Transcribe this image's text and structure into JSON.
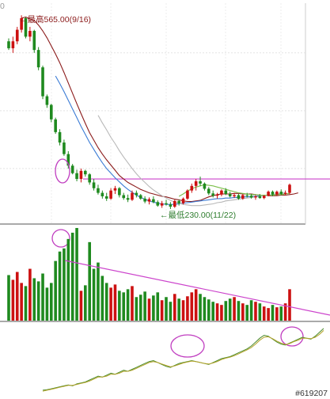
{
  "chart_data": {
    "type": "candlestick",
    "price_panel": {
      "max_label": "←最高565.00(9/16)",
      "min_label": "←最低230.00(11/22)",
      "max_value": 565.0,
      "min_value": 230.0,
      "corner_tick": "0",
      "candles": [
        [
          520,
          525,
          505,
          508
        ],
        [
          508,
          528,
          500,
          520
        ],
        [
          520,
          545,
          515,
          540
        ],
        [
          540,
          565,
          535,
          560
        ],
        [
          560,
          562,
          525,
          528
        ],
        [
          528,
          545,
          520,
          538
        ],
        [
          538,
          540,
          500,
          505
        ],
        [
          505,
          510,
          470,
          475
        ],
        [
          475,
          478,
          420,
          425
        ],
        [
          425,
          428,
          405,
          410
        ],
        [
          410,
          412,
          380,
          385
        ],
        [
          385,
          388,
          360,
          363
        ],
        [
          363,
          368,
          340,
          345
        ],
        [
          345,
          350,
          322,
          325
        ],
        [
          325,
          330,
          300,
          305
        ],
        [
          305,
          308,
          290,
          292
        ],
        [
          292,
          298,
          278,
          282
        ],
        [
          282,
          300,
          276,
          296
        ],
        [
          296,
          298,
          286,
          290
        ],
        [
          290,
          292,
          272,
          276
        ],
        [
          276,
          282,
          262,
          266
        ],
        [
          266,
          272,
          255,
          258
        ],
        [
          258,
          262,
          248,
          252
        ],
        [
          252,
          258,
          244,
          248
        ],
        [
          248,
          266,
          246,
          262
        ],
        [
          262,
          270,
          256,
          266
        ],
        [
          266,
          268,
          250,
          254
        ],
        [
          254,
          258,
          246,
          249
        ],
        [
          249,
          255,
          242,
          246
        ],
        [
          246,
          262,
          244,
          258
        ],
        [
          258,
          262,
          250,
          254
        ],
        [
          254,
          256,
          246,
          248
        ],
        [
          248,
          252,
          240,
          243
        ],
        [
          243,
          250,
          238,
          247
        ],
        [
          247,
          252,
          240,
          242
        ],
        [
          242,
          245,
          234,
          236
        ],
        [
          236,
          244,
          232,
          240
        ],
        [
          240,
          246,
          236,
          238
        ],
        [
          238,
          242,
          230,
          234
        ],
        [
          234,
          246,
          232,
          244
        ],
        [
          244,
          246,
          236,
          240
        ],
        [
          240,
          250,
          238,
          248
        ],
        [
          248,
          264,
          246,
          262
        ],
        [
          262,
          274,
          258,
          270
        ],
        [
          270,
          282,
          262,
          278
        ],
        [
          278,
          286,
          270,
          274
        ],
        [
          274,
          276,
          262,
          265
        ],
        [
          265,
          268,
          254,
          257
        ],
        [
          257,
          262,
          250,
          253
        ],
        [
          253,
          258,
          248,
          255
        ],
        [
          255,
          264,
          252,
          262
        ],
        [
          262,
          266,
          254,
          256
        ],
        [
          256,
          260,
          250,
          252
        ],
        [
          252,
          258,
          249,
          254
        ],
        [
          254,
          256,
          246,
          248
        ],
        [
          248,
          256,
          246,
          254
        ],
        [
          254,
          258,
          250,
          253
        ],
        [
          253,
          256,
          248,
          250
        ],
        [
          250,
          254,
          246,
          252
        ],
        [
          252,
          256,
          248,
          249
        ],
        [
          249,
          254,
          247,
          253
        ],
        [
          253,
          262,
          252,
          260
        ],
        [
          260,
          262,
          252,
          255
        ],
        [
          255,
          262,
          253,
          260
        ],
        [
          260,
          264,
          254,
          256
        ],
        [
          256,
          262,
          254,
          258
        ],
        [
          258,
          274,
          256,
          272
        ]
      ],
      "moving_averages": [
        {
          "color": "#8b1a1a",
          "start": 3,
          "values": [
            560,
            562,
            559,
            556,
            548,
            538,
            526,
            512,
            498,
            483,
            466,
            448,
            430,
            412,
            395,
            378,
            362,
            349,
            336,
            325,
            315,
            306,
            297,
            288,
            282,
            276,
            272,
            268,
            264,
            261,
            258,
            256,
            254,
            252,
            251,
            249,
            247,
            246,
            244,
            243,
            243,
            244,
            245,
            248,
            251,
            253,
            255,
            256,
            256,
            256,
            257,
            257,
            256,
            256,
            256,
            255,
            254,
            254,
            253,
            253,
            253,
            254,
            254,
            255,
            256,
            258
          ]
        },
        {
          "color": "#3a7bd5",
          "start": 11,
          "values": [
            460,
            447,
            433,
            418,
            403,
            388,
            373,
            359,
            345,
            333,
            321,
            310,
            300,
            292,
            284,
            277,
            270,
            264,
            259,
            254,
            250,
            247,
            244,
            242,
            240,
            239,
            238,
            238,
            238,
            239,
            240,
            241,
            242,
            243,
            244,
            245,
            246,
            247,
            248,
            248,
            249,
            249,
            250,
            250,
            251,
            251,
            252,
            252,
            253,
            253,
            254,
            255,
            256,
            257,
            258
          ]
        },
        {
          "color": "#b8b8b8",
          "start": 21,
          "values": [
            392,
            379,
            367,
            354,
            343,
            331,
            320,
            310,
            300,
            291,
            283,
            276,
            269,
            263,
            258,
            253,
            249,
            245,
            242,
            240,
            238,
            237,
            236,
            236,
            236,
            237,
            238,
            239,
            241,
            242,
            244,
            245,
            246,
            247,
            248,
            249,
            250,
            251,
            252,
            253,
            254,
            255,
            256,
            257,
            258
          ]
        },
        {
          "color": "#7cbf4a",
          "start": 40,
          "values": [
            252,
            256,
            261,
            265,
            268,
            270,
            272,
            271,
            270,
            268,
            266,
            264,
            262,
            260,
            258,
            257,
            256,
            255,
            255,
            254,
            254,
            254,
            254,
            255,
            255,
            256,
            257
          ]
        }
      ],
      "resistance_line": {
        "value": 282,
        "color": "#cc44cc"
      }
    },
    "volume_panel": {
      "values": [
        58,
        52,
        62,
        48,
        44,
        66,
        54,
        50,
        60,
        42,
        48,
        76,
        88,
        92,
        104,
        112,
        118,
        38,
        45,
        100,
        66,
        74,
        57,
        48,
        42,
        46,
        38,
        36,
        40,
        44,
        30,
        33,
        37,
        28,
        32,
        36,
        26,
        30,
        24,
        34,
        28,
        26,
        31,
        36,
        40,
        34,
        30,
        27,
        24,
        22,
        20,
        25,
        28,
        30,
        25,
        22,
        20,
        26,
        24,
        22,
        18,
        16,
        20,
        17,
        18,
        22,
        40
      ],
      "trend_line_color": "#cc44cc"
    },
    "indicator_panel": {
      "series": [
        {
          "name": "",
          "color": "#4a8a2a",
          "values": [
            5,
            6,
            8,
            10,
            12,
            14,
            16,
            14,
            18,
            20,
            22,
            26,
            30,
            34,
            32,
            36,
            40,
            38,
            42,
            46,
            44,
            48,
            52,
            56,
            60,
            64,
            66,
            62,
            58,
            54,
            52,
            56,
            60,
            62,
            64,
            66,
            64,
            62,
            60,
            58,
            62,
            66,
            70,
            72,
            74,
            78,
            82,
            86,
            90,
            96,
            104,
            112,
            118,
            116,
            110,
            104,
            100,
            98,
            102,
            106,
            110,
            114,
            112,
            110,
            116,
            124,
            132
          ]
        },
        {
          "name": "",
          "color": "#b5a32a",
          "values": [
            3,
            5,
            7,
            9,
            11,
            13,
            15,
            15,
            17,
            19,
            21,
            24,
            28,
            32,
            32,
            34,
            38,
            38,
            40,
            44,
            44,
            46,
            50,
            54,
            58,
            62,
            64,
            62,
            59,
            56,
            53,
            55,
            58,
            61,
            63,
            65,
            64,
            62,
            60,
            59,
            61,
            64,
            68,
            71,
            73,
            76,
            80,
            84,
            88,
            93,
            100,
            108,
            114,
            115,
            111,
            106,
            102,
            99,
            101,
            105,
            108,
            112,
            112,
            111,
            114,
            120,
            128
          ]
        }
      ]
    },
    "watermark": "#619207"
  }
}
